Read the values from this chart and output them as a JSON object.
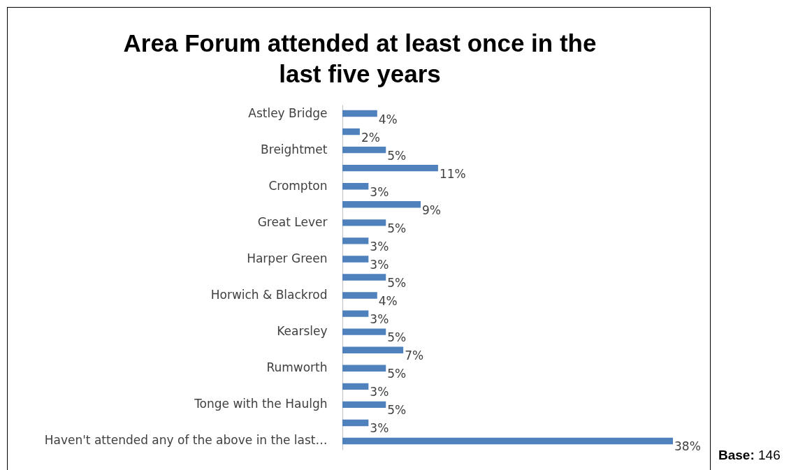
{
  "chart_data": {
    "type": "bar",
    "orientation": "horizontal",
    "title": "Area Forum attended at least once in the last five years",
    "categories": [
      "Astley Bridge",
      null,
      "Breightmet",
      null,
      "Crompton",
      null,
      "Great Lever",
      null,
      "Harper Green",
      null,
      "Horwich & Blackrod",
      null,
      "Kearsley",
      null,
      "Rumworth",
      null,
      "Tonge with the Haulgh",
      null,
      "Haven't attended any of the above in the last…"
    ],
    "values": [
      4,
      2,
      5,
      11,
      3,
      9,
      5,
      3,
      3,
      5,
      4,
      3,
      5,
      7,
      5,
      3,
      5,
      3,
      38
    ],
    "value_labels": [
      "4%",
      "2%",
      "5%",
      "11%",
      "3%",
      "9%",
      "5%",
      "3%",
      "3%",
      "5%",
      "4%",
      "3%",
      "5%",
      "7%",
      "5%",
      "3%",
      "5%",
      "3%",
      "38%"
    ],
    "color": "#4f81bd",
    "annotations": [
      "Base: 146"
    ]
  }
}
